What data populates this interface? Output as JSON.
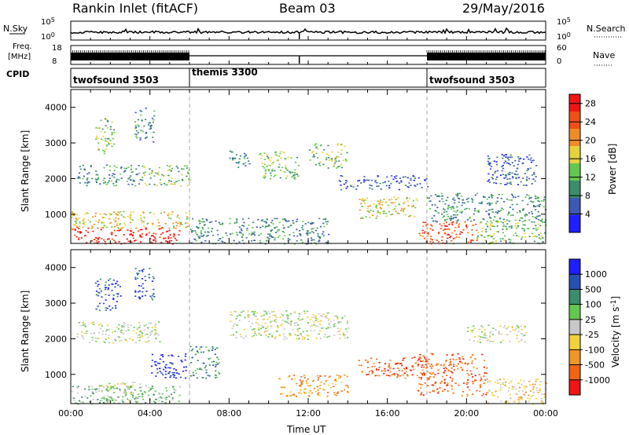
{
  "header": {
    "site": "Rankin Inlet (fitACF)",
    "beam": "Beam 03",
    "date": "29/May/2016"
  },
  "strips": {
    "nsky_label": "N.Sky",
    "nsky_top": "10^5",
    "nsky_bottom": "10^0",
    "nsearch_label": "N.Search",
    "nsearch_top": "10^5",
    "nsearch_bottom": "10^0",
    "freq_label_1": "Freq.",
    "freq_label_2": "[MHz]",
    "freq_top": "18",
    "freq_bottom": "8",
    "nave_top": "60",
    "nave_bottom": "0",
    "nave_label": "Nave",
    "cpid_label": "CPID"
  },
  "cpid": [
    {
      "name": "twofsound 3503",
      "start_h": 0,
      "end_h": 6
    },
    {
      "name": "themis 3300",
      "start_h": 6,
      "end_h": 18
    },
    {
      "name": "twofsound 3503",
      "start_h": 18,
      "end_h": 24
    }
  ],
  "colors": {
    "power": [
      "#1e1eff",
      "#3c5ab4",
      "#3c8c6e",
      "#64c850",
      "#e6d23c",
      "#f08c28",
      "#f05014",
      "#f01414"
    ],
    "velocity": [
      "#1e1eff",
      "#2850b4",
      "#3c8c6e",
      "#64c850",
      "#c8c8c8",
      "#f0d23c",
      "#f09628",
      "#f06414",
      "#f01414"
    ],
    "ground_scatter": "#c8c8c8"
  },
  "chart_data": [
    {
      "type": "heatmap",
      "name": "power",
      "xlabel": "",
      "ylabel": "Slant Range [km]",
      "xlim": [
        0,
        24
      ],
      "ylim": [
        180,
        4500
      ],
      "yticks": [
        "1000",
        "2000",
        "3000",
        "4000"
      ],
      "colorbar_label": "Power [dB]",
      "colorbar_ticks": [
        "4",
        "8",
        "12",
        "16",
        "20",
        "24",
        "28"
      ],
      "colorbar_range": [
        0,
        30
      ],
      "regions": [
        {
          "t0": 0.0,
          "t1": 5.5,
          "r0": 180,
          "r1": 650,
          "level": 7
        },
        {
          "t0": 0.0,
          "t1": 6.0,
          "r0": 600,
          "r1": 1100,
          "level": 4
        },
        {
          "t0": 0.3,
          "t1": 3.5,
          "r0": 1800,
          "r1": 2400,
          "level": 2
        },
        {
          "t0": 1.2,
          "t1": 2.2,
          "r0": 2700,
          "r1": 3700,
          "level": 3
        },
        {
          "t0": 3.2,
          "t1": 4.2,
          "r0": 3000,
          "r1": 4000,
          "level": 2
        },
        {
          "t0": 3.5,
          "t1": 6.0,
          "r0": 1800,
          "r1": 2400,
          "level": 3
        },
        {
          "t0": 6.0,
          "t1": 13.0,
          "r0": 180,
          "r1": 900,
          "level": 2
        },
        {
          "t0": 8.0,
          "t1": 9.0,
          "r0": 2300,
          "r1": 2800,
          "level": 2
        },
        {
          "t0": 9.5,
          "t1": 11.5,
          "r0": 2000,
          "r1": 2800,
          "level": 3
        },
        {
          "t0": 12.0,
          "t1": 14.0,
          "r0": 2300,
          "r1": 3000,
          "level": 3
        },
        {
          "t0": 13.5,
          "t1": 18.0,
          "r0": 1700,
          "r1": 2100,
          "level": 1
        },
        {
          "t0": 14.5,
          "t1": 17.5,
          "r0": 900,
          "r1": 1500,
          "level": 4
        },
        {
          "t0": 17.5,
          "t1": 20.5,
          "r0": 180,
          "r1": 800,
          "level": 6
        },
        {
          "t0": 18.0,
          "t1": 24.0,
          "r0": 800,
          "r1": 1600,
          "level": 2
        },
        {
          "t0": 20.5,
          "t1": 24.0,
          "r0": 180,
          "r1": 900,
          "level": 3
        },
        {
          "t0": 21.0,
          "t1": 23.5,
          "r0": 1800,
          "r1": 2700,
          "level": 1
        }
      ]
    },
    {
      "type": "heatmap",
      "name": "velocity",
      "xlabel": "Time UT",
      "ylabel": "Slant Range [km]",
      "xlim": [
        0,
        24
      ],
      "ylim": [
        180,
        4500
      ],
      "xticks": [
        "00:00",
        "04:00",
        "08:00",
        "12:00",
        "16:00",
        "20:00",
        "00:00"
      ],
      "yticks": [
        "1000",
        "2000",
        "3000",
        "4000"
      ],
      "colorbar_label": "Velocity [m s^-1]",
      "colorbar_ticks": [
        "1000",
        "500",
        "100",
        "25",
        "-25",
        "-100",
        "-500",
        "-1000"
      ],
      "regions": [
        {
          "t0": 0.0,
          "t1": 5.5,
          "r0": 180,
          "r1": 700,
          "level": 3
        },
        {
          "t0": 1.5,
          "t1": 3.5,
          "r0": 180,
          "r1": 800,
          "level": 4
        },
        {
          "t0": 0.3,
          "t1": 4.5,
          "r0": 1900,
          "r1": 2500,
          "level": 4
        },
        {
          "t0": 1.2,
          "t1": 2.5,
          "r0": 2800,
          "r1": 3700,
          "level": 1
        },
        {
          "t0": 3.2,
          "t1": 4.2,
          "r0": 3100,
          "r1": 4000,
          "level": 1
        },
        {
          "t0": 4.0,
          "t1": 5.8,
          "r0": 900,
          "r1": 1600,
          "level": 0
        },
        {
          "t0": 6.0,
          "t1": 7.5,
          "r0": 900,
          "r1": 1800,
          "level": 2
        },
        {
          "t0": 8.0,
          "t1": 14.0,
          "r0": 2000,
          "r1": 2800,
          "level": 4
        },
        {
          "t0": 10.5,
          "t1": 14.0,
          "r0": 400,
          "r1": 1000,
          "level": 6
        },
        {
          "t0": 14.5,
          "t1": 18.0,
          "r0": 900,
          "r1": 1500,
          "level": 7
        },
        {
          "t0": 17.5,
          "t1": 21.0,
          "r0": 400,
          "r1": 1600,
          "level": 7
        },
        {
          "t0": 20.0,
          "t1": 23.0,
          "r0": 1900,
          "r1": 2400,
          "level": 4
        },
        {
          "t0": 21.0,
          "t1": 24.0,
          "r0": 180,
          "r1": 900,
          "level": 5
        }
      ]
    }
  ]
}
